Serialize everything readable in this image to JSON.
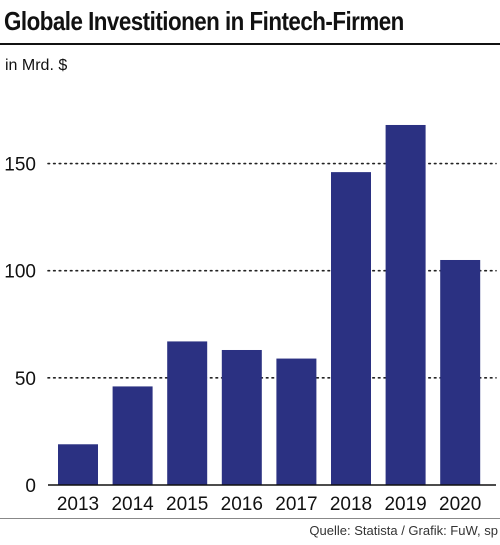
{
  "chart_data": {
    "type": "bar",
    "title": "Globale Investitionen in Fintech-Firmen",
    "unit_label": "in Mrd. $",
    "categories": [
      "2013",
      "2014",
      "2015",
      "2016",
      "2017",
      "2018",
      "2019",
      "2020"
    ],
    "values": [
      19,
      46,
      67,
      63,
      59,
      146,
      168,
      105
    ],
    "ylim": [
      0,
      170
    ],
    "yticks": [
      0,
      50,
      100,
      150
    ],
    "grid": true,
    "bar_color": "#2b3182",
    "source": "Quelle: Statista / Grafik: FuW, sp"
  }
}
